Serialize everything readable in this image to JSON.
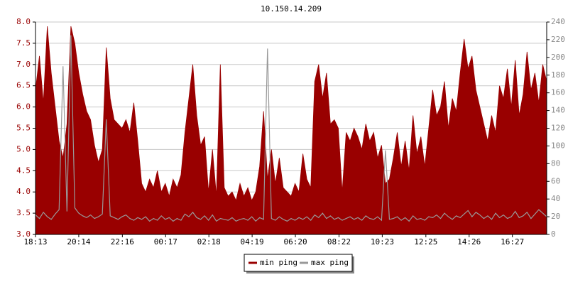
{
  "chart_data": {
    "type": "area",
    "title": "10.150.14.209",
    "grid": true,
    "legend": "bottom",
    "x": [
      "18:13",
      "18:24",
      "18:35",
      "18:46",
      "18:57",
      "19:08",
      "19:19",
      "19:30",
      "19:41",
      "19:52",
      "20:03",
      "20:14",
      "20:25",
      "20:36",
      "20:47",
      "20:58",
      "21:09",
      "21:20",
      "21:31",
      "21:42",
      "21:53",
      "22:04",
      "22:15",
      "22:26",
      "22:37",
      "22:48",
      "22:59",
      "23:10",
      "23:21",
      "23:32",
      "23:43",
      "23:54",
      "00:05",
      "00:16",
      "00:27",
      "00:38",
      "00:49",
      "01:00",
      "01:11",
      "01:22",
      "01:33",
      "01:44",
      "01:55",
      "02:06",
      "02:17",
      "02:28",
      "02:39",
      "02:50",
      "03:01",
      "03:12",
      "03:23",
      "03:34",
      "03:45",
      "03:56",
      "04:07",
      "04:18",
      "04:29",
      "04:40",
      "04:51",
      "05:02",
      "05:13",
      "05:24",
      "05:35",
      "05:46",
      "05:57",
      "06:08",
      "06:19",
      "06:30",
      "06:41",
      "06:52",
      "07:03",
      "07:14",
      "07:25",
      "07:36",
      "07:47",
      "07:58",
      "08:09",
      "08:20",
      "08:31",
      "08:42",
      "08:53",
      "09:04",
      "09:15",
      "09:26",
      "09:37",
      "09:48",
      "09:59",
      "10:10",
      "10:21",
      "10:32",
      "10:43",
      "10:54",
      "11:05",
      "11:16",
      "11:27",
      "11:38",
      "11:49",
      "12:00",
      "12:11",
      "12:22",
      "12:33",
      "12:44",
      "12:55",
      "13:06",
      "13:17",
      "13:28",
      "13:39",
      "13:50",
      "14:01",
      "14:12",
      "14:23",
      "14:34",
      "14:45",
      "14:56",
      "15:07",
      "15:18",
      "15:29",
      "15:40",
      "15:51",
      "16:02",
      "16:13",
      "16:24",
      "16:35",
      "16:46",
      "16:57",
      "17:08",
      "17:19",
      "17:30",
      "17:41",
      "17:52",
      "18:03"
    ],
    "xlim": [
      "18:13",
      "18:03"
    ],
    "xticks": [
      "18:13",
      "20:14",
      "22:16",
      "00:17",
      "02:18",
      "04:19",
      "06:20",
      "08:22",
      "10:23",
      "12:25",
      "14:26",
      "16:27"
    ],
    "ylim": [
      3,
      8
    ],
    "yticks": [
      {
        "value": 3,
        "label": "3.0"
      },
      {
        "value": 3.5,
        "label": "3.5"
      },
      {
        "value": 4,
        "label": "4.0"
      },
      {
        "value": 4.5,
        "label": "4.5"
      },
      {
        "value": 5,
        "label": "5.0"
      },
      {
        "value": 5.5,
        "label": "5.5"
      },
      {
        "value": 6,
        "label": "6.0"
      },
      {
        "value": 6.5,
        "label": "6.5"
      },
      {
        "value": 7,
        "label": "7.0"
      },
      {
        "value": 7.5,
        "label": "7.5"
      },
      {
        "value": 8,
        "label": "8.0"
      }
    ],
    "y2lim": [
      0,
      240
    ],
    "y2ticks": [
      0,
      20,
      40,
      60,
      80,
      100,
      120,
      140,
      160,
      180,
      200,
      220,
      240
    ],
    "series": [
      {
        "name": "min ping",
        "color": "#990000",
        "fill": true,
        "values": [
          6.4,
          7.2,
          6.1,
          7.9,
          6.8,
          6.0,
          5.2,
          4.8,
          5.6,
          7.9,
          7.5,
          6.8,
          6.3,
          5.9,
          5.7,
          5.1,
          4.7,
          5.0,
          7.4,
          6.2,
          5.7,
          5.6,
          5.5,
          5.7,
          5.4,
          6.1,
          5.2,
          4.2,
          4.0,
          4.3,
          4.1,
          4.5,
          4.0,
          4.2,
          3.9,
          4.3,
          4.1,
          4.4,
          5.4,
          6.2,
          7.0,
          5.8,
          5.1,
          5.3,
          4.0,
          5.0,
          3.9,
          7.0,
          4.1,
          3.9,
          4.0,
          3.8,
          4.2,
          3.9,
          4.1,
          3.8,
          4.0,
          4.6,
          5.9,
          4.3,
          5.0,
          4.2,
          4.8,
          4.1,
          4.0,
          3.9,
          4.2,
          4.0,
          4.9,
          4.3,
          4.1,
          6.6,
          7.0,
          6.2,
          6.8,
          5.6,
          5.7,
          5.5,
          4.0,
          5.4,
          5.2,
          5.5,
          5.3,
          5.0,
          5.6,
          5.2,
          5.4,
          4.8,
          5.1,
          4.2,
          4.3,
          4.8,
          5.4,
          4.6,
          5.2,
          4.5,
          5.8,
          4.9,
          5.3,
          4.6,
          5.5,
          6.4,
          5.8,
          6.0,
          6.6,
          5.5,
          6.2,
          5.9,
          6.8,
          7.6,
          6.9,
          7.2,
          6.4,
          6.0,
          5.6,
          5.2,
          5.8,
          5.4,
          6.5,
          6.2,
          6.9,
          6.0,
          7.1,
          5.8,
          6.3,
          7.3,
          6.4,
          6.8,
          6.1,
          7.0,
          6.6
        ]
      },
      {
        "name": "max ping",
        "color": "#999999",
        "axis": "y2",
        "values": [
          22,
          18,
          25,
          20,
          17,
          23,
          28,
          190,
          26,
          225,
          30,
          24,
          21,
          19,
          22,
          18,
          20,
          23,
          130,
          21,
          19,
          17,
          20,
          22,
          18,
          16,
          19,
          17,
          20,
          15,
          18,
          16,
          21,
          17,
          19,
          15,
          18,
          16,
          23,
          20,
          25,
          19,
          17,
          21,
          16,
          22,
          15,
          18,
          17,
          16,
          19,
          15,
          17,
          18,
          16,
          20,
          15,
          19,
          17,
          210,
          18,
          16,
          20,
          17,
          15,
          18,
          16,
          19,
          17,
          20,
          16,
          22,
          19,
          24,
          18,
          21,
          17,
          19,
          16,
          18,
          20,
          17,
          19,
          16,
          21,
          18,
          17,
          20,
          16,
          95,
          17,
          18,
          20,
          16,
          19,
          15,
          21,
          17,
          18,
          16,
          20,
          19,
          22,
          18,
          24,
          20,
          17,
          21,
          19,
          23,
          27,
          20,
          25,
          22,
          18,
          21,
          17,
          24,
          19,
          22,
          18,
          20,
          26,
          19,
          21,
          25,
          18,
          23,
          28,
          24,
          20
        ]
      }
    ]
  }
}
